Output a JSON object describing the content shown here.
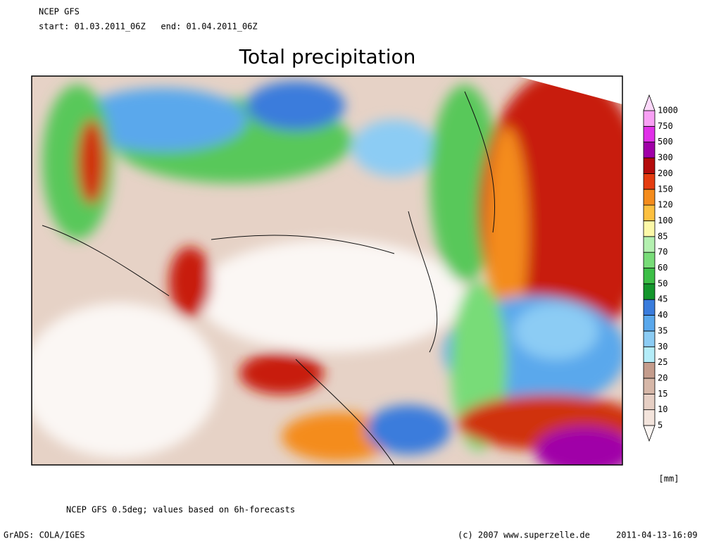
{
  "header": {
    "model": "NCEP GFS",
    "period": "start: 01.03.2011_06Z   end: 01.04.2011_06Z"
  },
  "title": "Total precipitation",
  "legend": {
    "unit": "[mm]",
    "below_color": "#fbf6f3",
    "levels": [
      {
        "value": 5,
        "color": "#f3e4dc"
      },
      {
        "value": 10,
        "color": "#e6cfc4"
      },
      {
        "value": 15,
        "color": "#d6b7a8"
      },
      {
        "value": 20,
        "color": "#c49c8c"
      },
      {
        "value": 25,
        "color": "#b4ecf8"
      },
      {
        "value": 30,
        "color": "#8cccf4"
      },
      {
        "value": 35,
        "color": "#5aa8ec"
      },
      {
        "value": 40,
        "color": "#3a7cdc"
      },
      {
        "value": 45,
        "color": "#14962c"
      },
      {
        "value": 50,
        "color": "#3cbe46"
      },
      {
        "value": 60,
        "color": "#78dc78"
      },
      {
        "value": 70,
        "color": "#b4f0b0"
      },
      {
        "value": 85,
        "color": "#fcf8a8"
      },
      {
        "value": 100,
        "color": "#fcc040"
      },
      {
        "value": 120,
        "color": "#f48c1c"
      },
      {
        "value": 150,
        "color": "#e43c10"
      },
      {
        "value": 200,
        "color": "#b40c0c"
      },
      {
        "value": 300,
        "color": "#a000a8"
      },
      {
        "value": 500,
        "color": "#e030e8"
      },
      {
        "value": 750,
        "color": "#f8a0f4"
      },
      {
        "value": 1000,
        "color": "#fcd8fa"
      }
    ]
  },
  "footer": {
    "note": "NCEP GFS 0.5deg; values based on 6h-forecasts",
    "software": "GrADS: COLA/IGES",
    "copyright": "(c) 2007 www.superzelle.de",
    "timestamp": "2011-04-13-16:09"
  }
}
